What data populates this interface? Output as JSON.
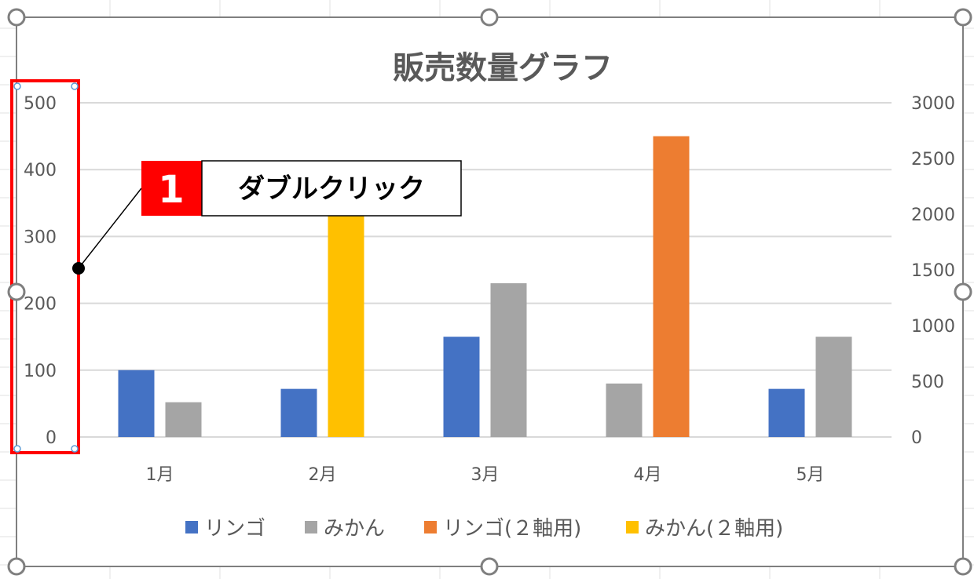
{
  "chart_data": {
    "type": "bar",
    "title": "販売数量グラフ",
    "categories": [
      "1月",
      "2月",
      "3月",
      "4月",
      "5月"
    ],
    "primary_axis": {
      "ticks": [
        "0",
        "100",
        "200",
        "300",
        "400",
        "500"
      ],
      "ylim": [
        0,
        500
      ]
    },
    "secondary_axis": {
      "ticks": [
        "0",
        "500",
        "1000",
        "1500",
        "2000",
        "2500",
        "3000"
      ],
      "ylim": [
        0,
        3000
      ]
    },
    "series": [
      {
        "name": "リンゴ",
        "axis": "primary",
        "color": "#4472C4",
        "values": [
          100,
          72,
          150,
          null,
          72
        ]
      },
      {
        "name": "みかん",
        "axis": "primary",
        "color": "#A5A5A5",
        "values": [
          52,
          null,
          230,
          80,
          150
        ]
      },
      {
        "name": "リンゴ(２軸用)",
        "axis": "secondary",
        "color": "#ED7D31",
        "values": [
          null,
          null,
          null,
          2700,
          null
        ]
      },
      {
        "name": "みかん(２軸用)",
        "axis": "secondary",
        "color": "#FFC000",
        "values": [
          null,
          2000,
          null,
          null,
          null
        ]
      }
    ],
    "legend_position": "bottom",
    "grid": true
  },
  "callout": {
    "step_number": "1",
    "text": "ダブルクリック"
  },
  "colors": {
    "highlight_box": "#FF0000",
    "callout_number_bg": "#FF0000",
    "gridline": "#D9D9D9",
    "chart_border": "#7F7F7F"
  }
}
